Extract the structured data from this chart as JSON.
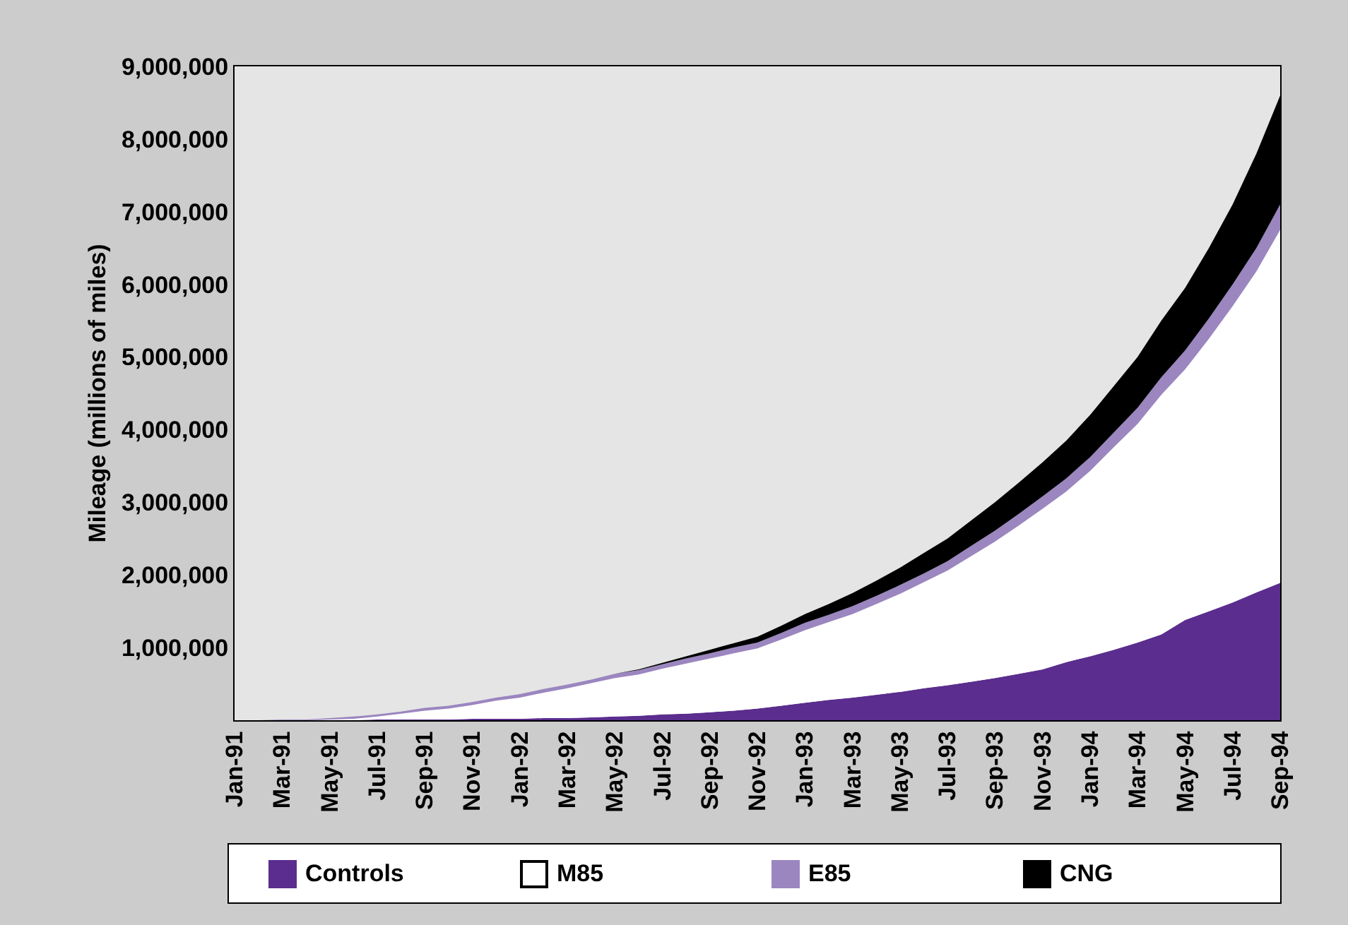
{
  "chart_data": {
    "type": "area",
    "stacked": true,
    "ylabel": "Mileage (millions of miles)",
    "categories": [
      "Jan-91",
      null,
      "Mar-91",
      null,
      "May-91",
      null,
      "Jul-91",
      null,
      "Sep-91",
      null,
      "Nov-91",
      null,
      "Jan-92",
      null,
      "Mar-92",
      null,
      "May-92",
      null,
      "Jul-92",
      null,
      "Sep-92",
      null,
      "Nov-92",
      null,
      "Jan-93",
      null,
      "Mar-93",
      null,
      "May-93",
      null,
      "Jul-93",
      null,
      "Sep-93",
      null,
      "Nov-93",
      null,
      "Jan-94",
      null,
      "Mar-94",
      null,
      "May-94",
      null,
      "Jul-94",
      null,
      "Sep-94"
    ],
    "series": [
      {
        "name": "Controls",
        "color": "#5b2d8e",
        "values": [
          0,
          0,
          0,
          0,
          0,
          0,
          10000,
          10000,
          10000,
          10000,
          20000,
          20000,
          20000,
          30000,
          30000,
          40000,
          50000,
          60000,
          80000,
          90000,
          110000,
          130000,
          160000,
          200000,
          240000,
          280000,
          310000,
          350000,
          390000,
          440000,
          480000,
          530000,
          580000,
          640000,
          700000,
          800000,
          880000,
          970000,
          1070000,
          1180000,
          1380000,
          1500000,
          1620000,
          1760000,
          1890000
        ]
      },
      {
        "name": "M85",
        "color": "#ffffff",
        "values": [
          0,
          0,
          0,
          0,
          10000,
          20000,
          40000,
          80000,
          120000,
          150000,
          190000,
          250000,
          290000,
          350000,
          410000,
          470000,
          530000,
          570000,
          630000,
          690000,
          740000,
          790000,
          830000,
          910000,
          1000000,
          1070000,
          1150000,
          1250000,
          1350000,
          1460000,
          1580000,
          1730000,
          1880000,
          2040000,
          2210000,
          2350000,
          2550000,
          2790000,
          3010000,
          3300000,
          3450000,
          3750000,
          4080000,
          4420000,
          4860000
        ]
      },
      {
        "name": "E85",
        "color": "#9b86c0",
        "values": [
          0,
          0,
          10000,
          10000,
          20000,
          30000,
          30000,
          30000,
          40000,
          40000,
          40000,
          40000,
          50000,
          50000,
          50000,
          50000,
          60000,
          60000,
          60000,
          70000,
          70000,
          80000,
          80000,
          90000,
          100000,
          100000,
          110000,
          110000,
          120000,
          120000,
          130000,
          140000,
          150000,
          160000,
          170000,
          180000,
          190000,
          200000,
          220000,
          240000,
          260000,
          280000,
          300000,
          320000,
          350000
        ]
      },
      {
        "name": "CNG",
        "color": "#000000",
        "values": [
          0,
          0,
          0,
          0,
          0,
          0,
          0,
          0,
          0,
          0,
          0,
          0,
          0,
          0,
          0,
          0,
          0,
          10000,
          20000,
          30000,
          50000,
          60000,
          80000,
          100000,
          120000,
          150000,
          180000,
          210000,
          240000,
          280000,
          310000,
          350000,
          390000,
          430000,
          470000,
          520000,
          580000,
          640000,
          700000,
          780000,
          860000,
          970000,
          1100000,
          1300000,
          1500000
        ]
      }
    ],
    "ylim": [
      0,
      9000000
    ],
    "yticks": [
      {
        "value": 1000000,
        "label": "1,000,000"
      },
      {
        "value": 2000000,
        "label": "2,000,000"
      },
      {
        "value": 3000000,
        "label": "3,000,000"
      },
      {
        "value": 4000000,
        "label": "4,000,000"
      },
      {
        "value": 5000000,
        "label": "5,000,000"
      },
      {
        "value": 6000000,
        "label": "6,000,000"
      },
      {
        "value": 7000000,
        "label": "7,000,000"
      },
      {
        "value": 8000000,
        "label": "8,000,000"
      },
      {
        "value": 9000000,
        "label": "9,000,000"
      }
    ],
    "grid": false,
    "legend": "bottom"
  }
}
